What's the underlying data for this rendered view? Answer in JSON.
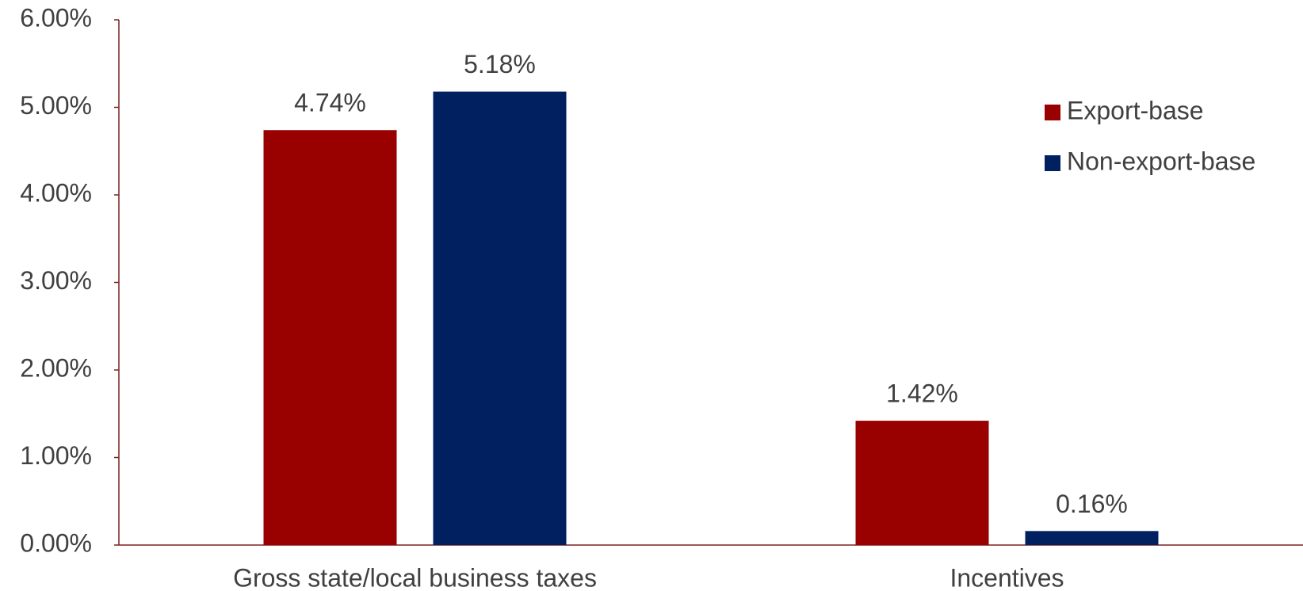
{
  "chart_data": {
    "type": "bar",
    "categories": [
      "Gross state/local business taxes",
      "Incentives"
    ],
    "series": [
      {
        "name": "Export-base",
        "color": "#990000",
        "values": [
          4.74,
          1.42
        ],
        "value_labels": [
          "4.74%",
          "1.42%"
        ]
      },
      {
        "name": "Non-export-base",
        "color": "#002060",
        "values": [
          5.18,
          0.16
        ],
        "value_labels": [
          "5.18%",
          "0.16%"
        ]
      }
    ],
    "ylim": [
      0,
      6
    ],
    "yticks": [
      {
        "value": 0,
        "label": "0.00%"
      },
      {
        "value": 1,
        "label": "1.00%"
      },
      {
        "value": 2,
        "label": "2.00%"
      },
      {
        "value": 3,
        "label": "3.00%"
      },
      {
        "value": 4,
        "label": "4.00%"
      },
      {
        "value": 5,
        "label": "5.00%"
      },
      {
        "value": 6,
        "label": "6.00%"
      }
    ],
    "grid": false,
    "legend": "right"
  }
}
